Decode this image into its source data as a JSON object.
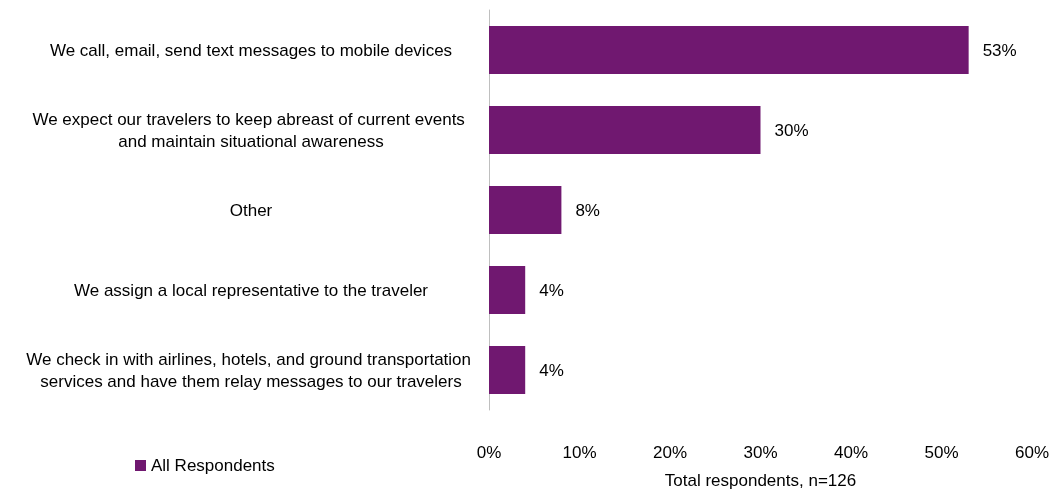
{
  "chart_data": {
    "type": "bar",
    "orientation": "horizontal",
    "xlabel": "Total respondents, n=126",
    "categories": [
      "We call, email, send text messages to mobile devices",
      "We expect our travelers to keep abreast of current events and maintain situational awareness",
      "Other",
      "We assign a local representative to the traveler",
      "We check in with airlines, hotels, and ground transportation services and have them relay messages to our travelers"
    ],
    "series": [
      {
        "name": "All Respondents",
        "color": "#701870",
        "values": [
          53,
          30,
          8,
          4,
          4
        ],
        "value_labels": [
          "53%",
          "30%",
          "8%",
          "4%",
          "4%"
        ]
      }
    ],
    "xlim": [
      0,
      60
    ],
    "xticks": [
      {
        "value": 0,
        "label": "0%"
      },
      {
        "value": 10,
        "label": "10%"
      },
      {
        "value": 20,
        "label": "20%"
      },
      {
        "value": 30,
        "label": "30%"
      },
      {
        "value": 40,
        "label": "40%"
      },
      {
        "value": 50,
        "label": "50%"
      },
      {
        "value": 60,
        "label": "60%"
      }
    ],
    "grid": false,
    "legend": "bottom left"
  }
}
